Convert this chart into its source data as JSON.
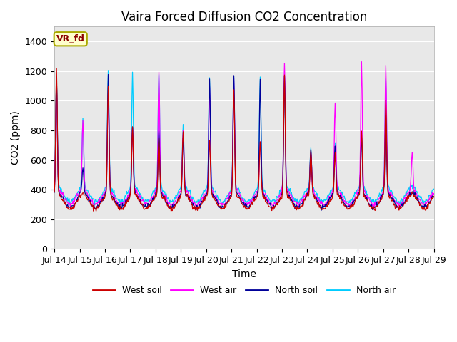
{
  "title": "Vaira Forced Diffusion CO2 Concentration",
  "xlabel": "Time",
  "ylabel": "CO2 (ppm)",
  "annotation": "VR_fd",
  "ylim": [
    0,
    1500
  ],
  "yticks": [
    0,
    200,
    400,
    600,
    800,
    1000,
    1200,
    1400
  ],
  "n_days": 15,
  "xtick_labels": [
    "Jul 14",
    "Jul 15",
    "Jul 16",
    "Jul 17",
    "Jul 18",
    "Jul 19",
    "Jul 20",
    "Jul 21",
    "Jul 22",
    "Jul 23",
    "Jul 24",
    "Jul 25",
    "Jul 26",
    "Jul 27",
    "Jul 28",
    "Jul 29"
  ],
  "plot_background": "#e8e8e8",
  "grid_color": "white",
  "colors": {
    "west_soil": "#cc0000",
    "west_air": "#ff00ff",
    "north_soil": "#000099",
    "north_air": "#00ccff"
  },
  "legend_labels": [
    "West soil",
    "West air",
    "North soil",
    "North air"
  ],
  "title_fontsize": 12,
  "label_fontsize": 10,
  "tick_fontsize": 9,
  "spike_hours": [
    2,
    3,
    3,
    2,
    3,
    2,
    3,
    2,
    3,
    2,
    3,
    2,
    3,
    2,
    3
  ],
  "west_soil_peaks": [
    1220,
    450,
    1100,
    820,
    750,
    800,
    730,
    1080,
    730,
    1160,
    670,
    650,
    790,
    1000,
    350
  ],
  "west_air_peaks": [
    1100,
    880,
    1060,
    820,
    1190,
    800,
    1090,
    1150,
    740,
    1260,
    650,
    990,
    1250,
    1230,
    650
  ],
  "north_soil_peaks": [
    1170,
    550,
    1170,
    830,
    800,
    750,
    1150,
    1160,
    1150,
    1160,
    680,
    700,
    760,
    900,
    350
  ],
  "north_air_peaks": [
    1170,
    880,
    1200,
    1190,
    1190,
    830,
    1160,
    1160,
    1160,
    1160,
    680,
    700,
    760,
    1150,
    400
  ],
  "base_west_soil": 370,
  "base_west_air": 400,
  "base_north_soil": 380,
  "base_north_air": 420,
  "day_min": 290,
  "day_amplitude": 100
}
